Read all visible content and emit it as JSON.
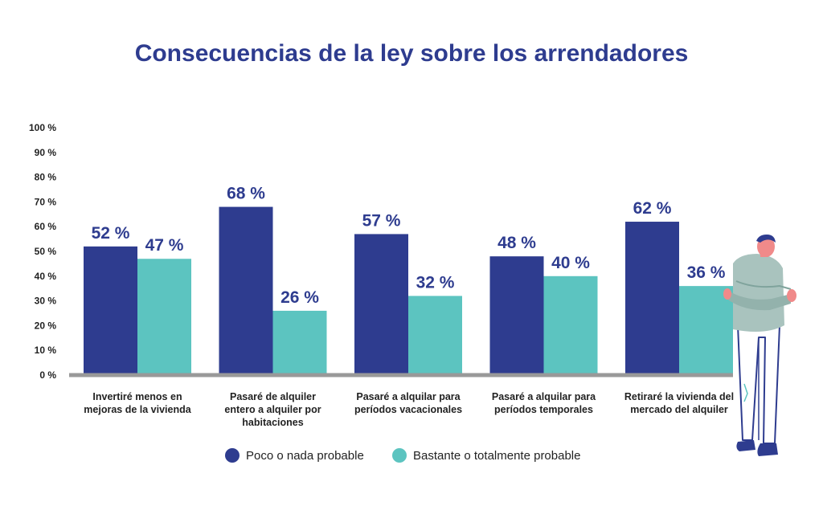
{
  "chart_data": {
    "type": "bar",
    "title": "Consecuencias de la ley sobre los arrendadores",
    "xlabel": "",
    "ylabel": "",
    "ylim": [
      0,
      100
    ],
    "yticks": [
      "0 %",
      "10 %",
      "20 %",
      "30 %",
      "40 %",
      "50 %",
      "60 %",
      "70 %",
      "80 %",
      "90 %",
      "100 %"
    ],
    "categories": [
      [
        "Invertiré menos en",
        "mejoras de la vivienda"
      ],
      [
        "Pasaré de alquiler",
        "entero a alquiler por",
        "habitaciones"
      ],
      [
        "Pasaré a alquilar para",
        "períodos vacacionales"
      ],
      [
        "Pasaré a alquilar para",
        "períodos temporales"
      ],
      [
        "Retiraré la vivienda del",
        "mercado del alquiler"
      ]
    ],
    "series": [
      {
        "name": "Poco o nada probable",
        "color": "#2e3c8f",
        "values": [
          52,
          68,
          57,
          48,
          62
        ],
        "labels": [
          "52 %",
          "68 %",
          "57 %",
          "48 %",
          "62 %"
        ]
      },
      {
        "name": "Bastante o totalmente probable",
        "color": "#5cc4c0",
        "values": [
          47,
          26,
          32,
          40,
          36
        ],
        "labels": [
          "47 %",
          "26 %",
          "32 %",
          "40 %",
          "36 %"
        ]
      }
    ],
    "grid": false,
    "legend": "bottom"
  },
  "colors": {
    "title": "#2e3c8f",
    "axis_text": "#222222",
    "baseline": "#999999",
    "label": "#2e3c8f"
  },
  "illustration": "person-arms-crossed-illustration"
}
